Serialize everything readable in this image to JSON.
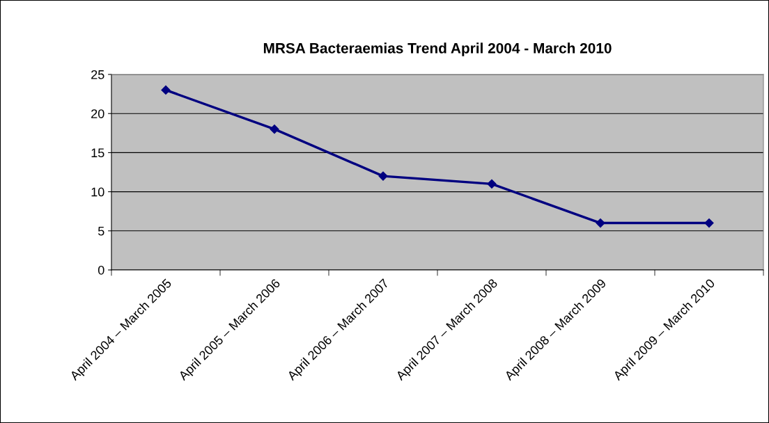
{
  "chart_data": {
    "type": "line",
    "title": "MRSA Bacteraemias Trend April 2004 - March 2010",
    "categories": [
      "April 2004 – March 2005",
      "April 2005 – March 2006",
      "April 2006 – March 2007",
      "April 2007 – March 2008",
      "April 2008 – March 2009",
      "April 2009 – March 2010"
    ],
    "series": [
      {
        "color": "#000080",
        "values": [
          23,
          18,
          12,
          11,
          6,
          6
        ]
      }
    ],
    "ylim": [
      0,
      25
    ],
    "yticks": [
      0,
      5,
      10,
      15,
      20,
      25
    ],
    "grid": "y",
    "marker": "diamond",
    "line_style": "solid",
    "legend": false
  }
}
